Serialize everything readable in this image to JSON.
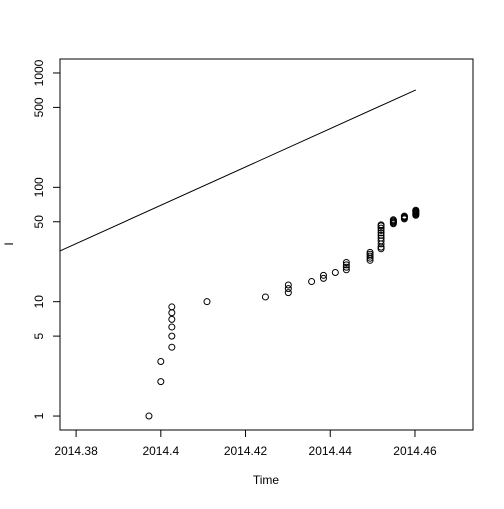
{
  "chart_data": {
    "type": "scatter",
    "xlabel": "Time",
    "ylabel": "I",
    "xlim": [
      2014.3762,
      2014.4737
    ],
    "xticks": [
      2014.38,
      2014.4,
      2014.42,
      2014.44,
      2014.46
    ],
    "ylim": [
      0.755,
      1325
    ],
    "yticks": [
      1,
      5,
      10,
      50,
      100,
      500,
      1000
    ],
    "log_y": true,
    "series": [
      {
        "type": "scatter",
        "color": "#000000",
        "x": [
          2014.3972,
          2014.4,
          2014.4,
          2014.4026,
          2014.4026,
          2014.4026,
          2014.4026,
          2014.4026,
          2014.4026,
          2014.4109,
          2014.4247,
          2014.4301,
          2014.4301,
          2014.4301,
          2014.4356,
          2014.4384,
          2014.4384,
          2014.4412,
          2014.4438,
          2014.4438,
          2014.4438,
          2014.4438,
          2014.4494,
          2014.4494,
          2014.4494,
          2014.4494,
          2014.4494,
          2014.452,
          2014.452,
          2014.452,
          2014.452,
          2014.452,
          2014.452,
          2014.452,
          2014.452,
          2014.452,
          2014.452,
          2014.452,
          2014.4549,
          2014.4549,
          2014.4549,
          2014.4549,
          2014.4549,
          2014.4575,
          2014.4575,
          2014.4575,
          2014.4575,
          2014.4602,
          2014.4602,
          2014.4602,
          2014.4602,
          2014.4602,
          2014.4602,
          2014.4602
        ],
        "values": [
          1,
          2,
          3,
          4,
          5,
          6,
          7,
          8,
          9,
          10,
          11,
          12,
          13,
          14,
          15,
          16,
          17,
          18,
          19,
          20,
          21,
          22,
          23,
          24,
          25,
          26,
          27,
          29,
          30,
          32,
          34,
          36,
          38,
          40,
          42,
          44,
          46,
          47,
          48,
          49,
          50,
          51,
          52,
          53,
          54,
          55,
          56,
          57,
          58,
          59,
          60,
          61,
          62,
          63
        ]
      },
      {
        "type": "line",
        "color": "#000000",
        "x": [
          2014.3762,
          2014.4602
        ],
        "values": [
          27.8,
          711
        ]
      }
    ]
  }
}
